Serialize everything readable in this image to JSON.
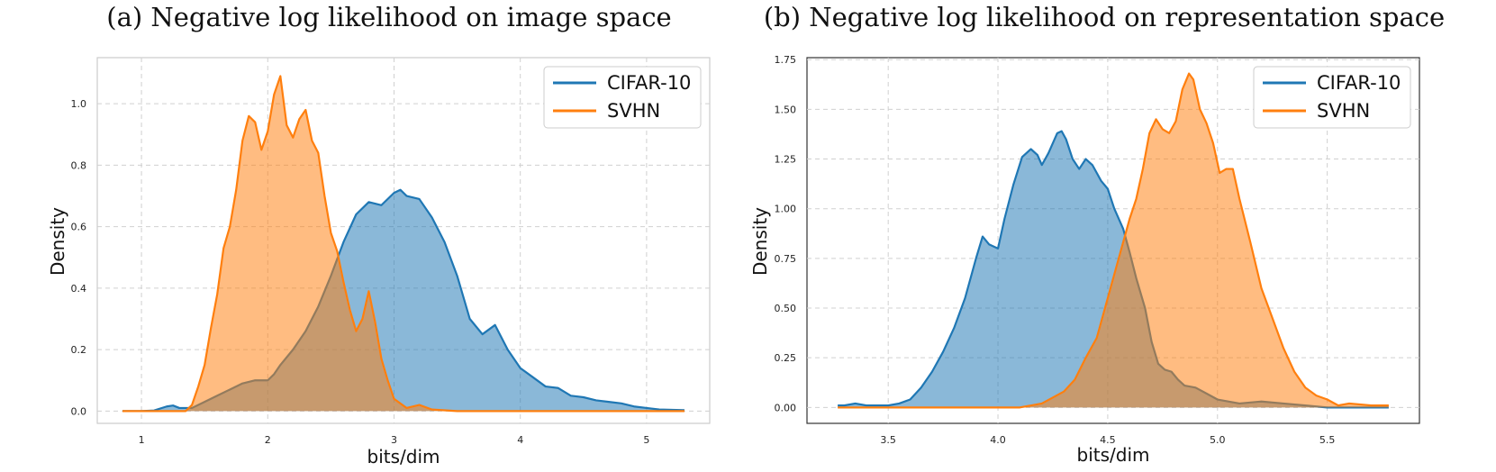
{
  "colors": {
    "cifar": "#1f77b4",
    "svhn": "#ff7f0e",
    "grid": "#d0d0d0",
    "frame_a": "#cccccc",
    "frame_b": "#333333"
  },
  "chart_data": [
    {
      "type": "area",
      "title": "(a) Negative log likelihood on image space",
      "xlabel": "bits/dim",
      "ylabel": "Density",
      "xlim": [
        0.65,
        5.5
      ],
      "ylim": [
        -0.04,
        1.15
      ],
      "xticks": [
        1,
        2,
        3,
        4,
        5
      ],
      "xtick_labels": [
        "1",
        "2",
        "3",
        "4",
        "5"
      ],
      "yticks": [
        0.0,
        0.2,
        0.4,
        0.6,
        0.8,
        1.0
      ],
      "ytick_labels": [
        "0.0",
        "0.2",
        "0.4",
        "0.6",
        "0.8",
        "1.0"
      ],
      "grid": true,
      "legend_position": "top-right",
      "series": [
        {
          "name": "CIFAR-10",
          "color_key": "cifar",
          "x": [
            0.85,
            1.0,
            1.1,
            1.2,
            1.25,
            1.3,
            1.4,
            1.5,
            1.6,
            1.7,
            1.8,
            1.9,
            2.0,
            2.05,
            2.1,
            2.2,
            2.3,
            2.4,
            2.5,
            2.6,
            2.7,
            2.8,
            2.9,
            3.0,
            3.05,
            3.1,
            3.2,
            3.3,
            3.4,
            3.5,
            3.6,
            3.7,
            3.8,
            3.9,
            4.0,
            4.1,
            4.2,
            4.3,
            4.4,
            4.5,
            4.6,
            4.7,
            4.8,
            4.9,
            5.0,
            5.1,
            5.3
          ],
          "y": [
            0.0,
            0.0,
            0.002,
            0.015,
            0.018,
            0.01,
            0.01,
            0.03,
            0.05,
            0.07,
            0.09,
            0.1,
            0.1,
            0.12,
            0.15,
            0.2,
            0.26,
            0.34,
            0.44,
            0.55,
            0.64,
            0.68,
            0.67,
            0.71,
            0.72,
            0.7,
            0.69,
            0.63,
            0.55,
            0.44,
            0.3,
            0.25,
            0.28,
            0.2,
            0.14,
            0.11,
            0.08,
            0.075,
            0.05,
            0.045,
            0.035,
            0.03,
            0.025,
            0.015,
            0.01,
            0.005,
            0.003
          ]
        },
        {
          "name": "SVHN",
          "color_key": "svhn",
          "x": [
            0.85,
            1.2,
            1.35,
            1.4,
            1.45,
            1.5,
            1.55,
            1.6,
            1.65,
            1.7,
            1.75,
            1.8,
            1.85,
            1.9,
            1.95,
            2.0,
            2.05,
            2.1,
            2.15,
            2.2,
            2.25,
            2.3,
            2.35,
            2.4,
            2.45,
            2.5,
            2.55,
            2.6,
            2.65,
            2.7,
            2.75,
            2.8,
            2.85,
            2.9,
            2.95,
            3.0,
            3.1,
            3.2,
            3.3,
            3.5,
            5.3
          ],
          "y": [
            0.0,
            0.0,
            0.0,
            0.02,
            0.08,
            0.15,
            0.27,
            0.38,
            0.53,
            0.6,
            0.72,
            0.88,
            0.96,
            0.94,
            0.85,
            0.91,
            1.03,
            1.09,
            0.93,
            0.89,
            0.95,
            0.98,
            0.88,
            0.84,
            0.7,
            0.58,
            0.52,
            0.42,
            0.33,
            0.26,
            0.3,
            0.39,
            0.29,
            0.17,
            0.1,
            0.04,
            0.01,
            0.02,
            0.005,
            0.0,
            0.0
          ]
        }
      ]
    },
    {
      "type": "area",
      "title": "(b) Negative log likelihood on representation space",
      "xlabel": "bits/dim",
      "ylabel": "Density",
      "xlim": [
        3.13,
        5.92
      ],
      "ylim": [
        -0.08,
        1.76
      ],
      "xticks": [
        3.5,
        4.0,
        4.5,
        5.0,
        5.5
      ],
      "xtick_labels": [
        "3.5",
        "4.0",
        "4.5",
        "5.0",
        "5.5"
      ],
      "yticks": [
        0.0,
        0.25,
        0.5,
        0.75,
        1.0,
        1.25,
        1.5,
        1.75
      ],
      "ytick_labels": [
        "0.00",
        "0.25",
        "0.50",
        "0.75",
        "1.00",
        "1.25",
        "1.50",
        "1.75"
      ],
      "grid": true,
      "legend_position": "top-right",
      "series": [
        {
          "name": "CIFAR-10",
          "color_key": "cifar",
          "x": [
            3.27,
            3.3,
            3.35,
            3.4,
            3.45,
            3.5,
            3.55,
            3.6,
            3.65,
            3.7,
            3.75,
            3.8,
            3.85,
            3.9,
            3.93,
            3.96,
            4.0,
            4.03,
            4.07,
            4.11,
            4.15,
            4.18,
            4.2,
            4.23,
            4.27,
            4.29,
            4.31,
            4.34,
            4.37,
            4.4,
            4.43,
            4.47,
            4.5,
            4.53,
            4.57,
            4.6,
            4.63,
            4.67,
            4.7,
            4.73,
            4.76,
            4.79,
            4.82,
            4.85,
            4.9,
            4.95,
            5.0,
            5.1,
            5.2,
            5.3,
            5.4,
            5.5,
            5.6,
            5.78
          ],
          "y": [
            0.01,
            0.01,
            0.02,
            0.01,
            0.01,
            0.01,
            0.02,
            0.04,
            0.1,
            0.18,
            0.28,
            0.4,
            0.55,
            0.75,
            0.86,
            0.82,
            0.8,
            0.95,
            1.12,
            1.26,
            1.3,
            1.27,
            1.22,
            1.28,
            1.38,
            1.39,
            1.35,
            1.25,
            1.2,
            1.25,
            1.22,
            1.14,
            1.1,
            1.0,
            0.9,
            0.78,
            0.65,
            0.5,
            0.33,
            0.22,
            0.19,
            0.18,
            0.14,
            0.11,
            0.1,
            0.07,
            0.04,
            0.02,
            0.03,
            0.02,
            0.01,
            0.0,
            0.0,
            0.0
          ]
        },
        {
          "name": "SVHN",
          "color_key": "svhn",
          "x": [
            3.27,
            3.8,
            4.1,
            4.2,
            4.25,
            4.3,
            4.35,
            4.4,
            4.45,
            4.5,
            4.55,
            4.6,
            4.63,
            4.66,
            4.69,
            4.72,
            4.75,
            4.78,
            4.81,
            4.84,
            4.87,
            4.89,
            4.92,
            4.95,
            4.98,
            5.01,
            5.04,
            5.07,
            5.1,
            5.15,
            5.2,
            5.25,
            5.3,
            5.35,
            5.4,
            5.45,
            5.5,
            5.55,
            5.6,
            5.7,
            5.78
          ],
          "y": [
            0.0,
            0.0,
            0.0,
            0.02,
            0.05,
            0.08,
            0.14,
            0.25,
            0.35,
            0.55,
            0.75,
            0.95,
            1.05,
            1.2,
            1.38,
            1.45,
            1.4,
            1.38,
            1.44,
            1.6,
            1.68,
            1.65,
            1.5,
            1.43,
            1.33,
            1.18,
            1.2,
            1.2,
            1.05,
            0.83,
            0.6,
            0.45,
            0.3,
            0.18,
            0.1,
            0.06,
            0.04,
            0.01,
            0.02,
            0.01,
            0.01
          ]
        }
      ]
    }
  ]
}
